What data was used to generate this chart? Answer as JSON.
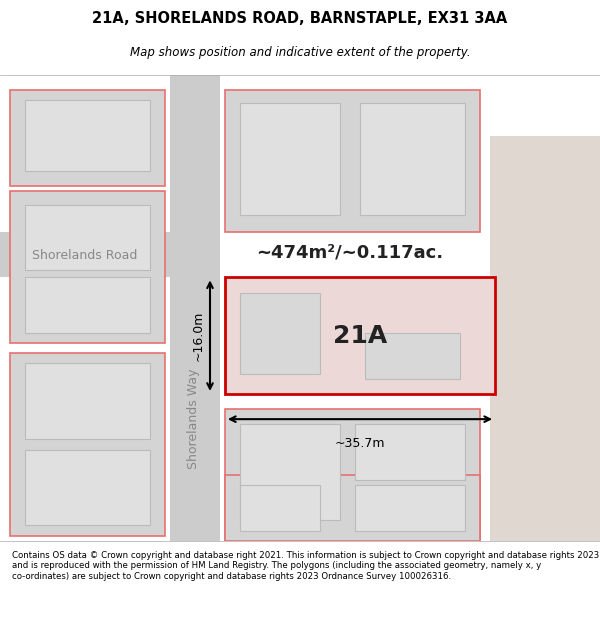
{
  "title_line1": "21A, SHORELANDS ROAD, BARNSTAPLE, EX31 3AA",
  "title_line2": "Map shows position and indicative extent of the property.",
  "footer_text": "Contains OS data © Crown copyright and database right 2021. This information is subject to Crown copyright and database rights 2023 and is reproduced with the permission of HM Land Registry. The polygons (including the associated geometry, namely x, y co-ordinates) are subject to Crown copyright and database rights 2023 Ordnance Survey 100026316.",
  "bg_color": "#f5f5f5",
  "map_bg": "#e8e8e8",
  "road_color": "#d0d0d0",
  "building_fill": "#d8d8d8",
  "building_edge": "#c0c0c0",
  "highlight_fill": "#e8d8d8",
  "highlight_edge": "#cc0000",
  "pink_edge": "#e87070",
  "label_21a": "21A",
  "area_text": "~474m²/~0.117ac.",
  "dim_width": "~35.7m",
  "dim_height": "~16.0m",
  "road_label_1": "Shorelands Road",
  "road_label_2": "Shorelands Way"
}
